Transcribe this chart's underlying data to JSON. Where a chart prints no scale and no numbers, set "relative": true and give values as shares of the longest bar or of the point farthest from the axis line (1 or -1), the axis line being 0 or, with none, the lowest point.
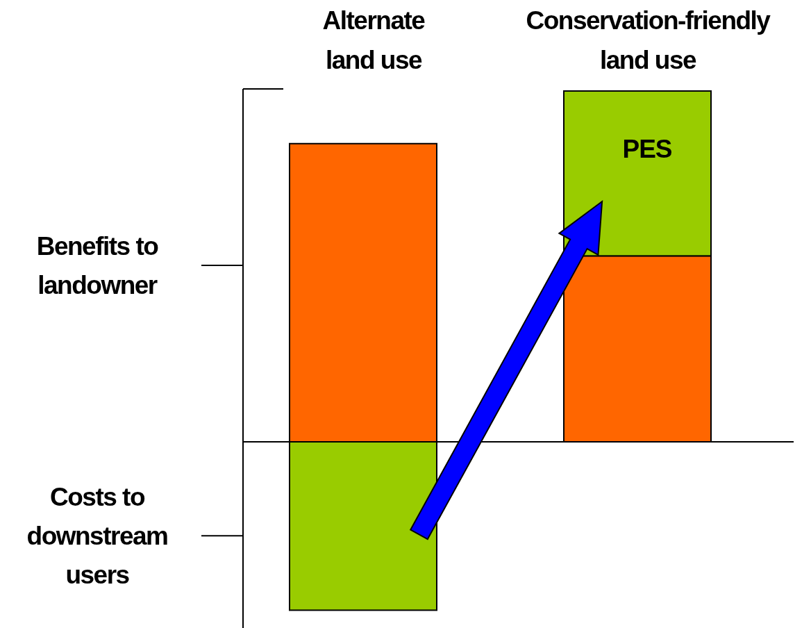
{
  "chart_data": {
    "type": "bar",
    "relative": true,
    "stacked": true,
    "categories": [
      "Alternate land use",
      "Conservation-friendly land use"
    ],
    "series": [
      {
        "color": "#ff6600",
        "values": [
          0.85,
          0.53
        ]
      },
      {
        "color": "#99cc00",
        "values": [
          -0.48,
          0.47
        ]
      }
    ],
    "annotations": [
      "PES",
      "Benefits to landowner",
      "Costs to downstream users"
    ]
  }
}
